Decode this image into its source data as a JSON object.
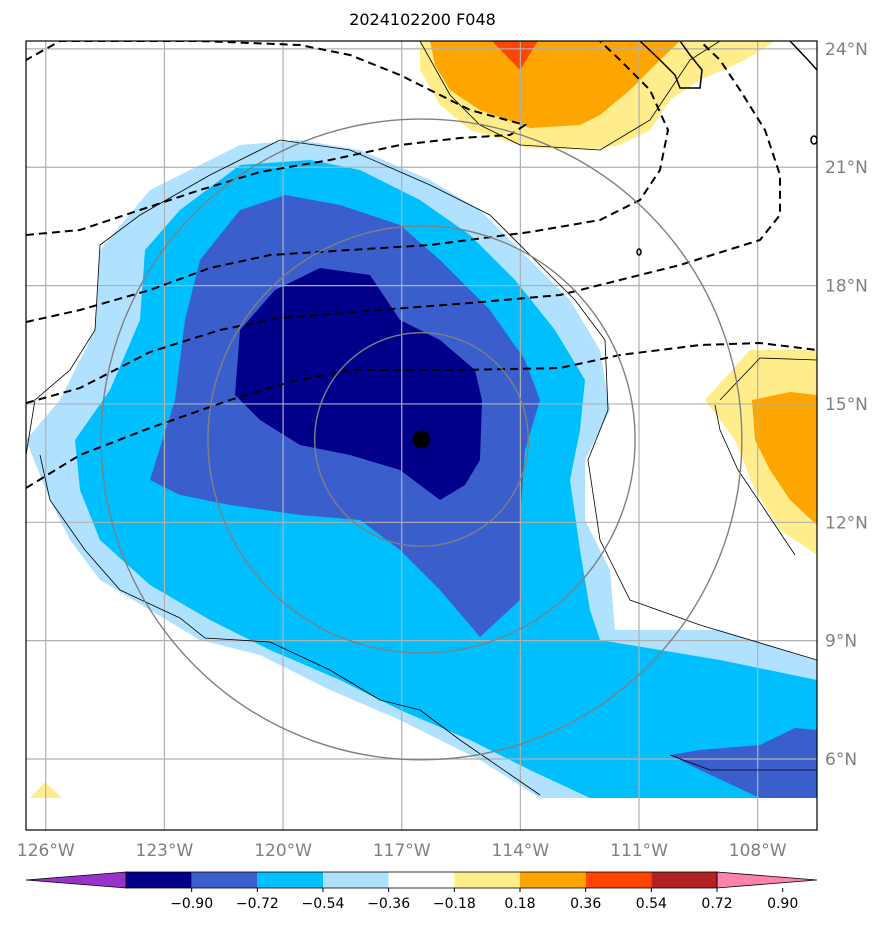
{
  "title": "2024102200 F048",
  "map": {
    "lon_range": [
      -126.5,
      -106.5
    ],
    "lat_range": [
      4.2,
      24.2
    ],
    "lat_ticks": [
      {
        "value": 24,
        "label": "24°N"
      },
      {
        "value": 21,
        "label": "21°N"
      },
      {
        "value": 18,
        "label": "18°N"
      },
      {
        "value": 15,
        "label": "15°N"
      },
      {
        "value": 12,
        "label": "12°N"
      },
      {
        "value": 9,
        "label": "9°N"
      },
      {
        "value": 6,
        "label": "6°N"
      }
    ],
    "lon_ticks": [
      {
        "value": -126,
        "label": "126°W"
      },
      {
        "value": -123,
        "label": "123°W"
      },
      {
        "value": -120,
        "label": "120°W"
      },
      {
        "value": -117,
        "label": "117°W"
      },
      {
        "value": -114,
        "label": "114°W"
      },
      {
        "value": -111,
        "label": "111°W"
      },
      {
        "value": -108,
        "label": "108°W"
      }
    ],
    "storm_center": {
      "lon": -116.5,
      "lat": 14.1
    },
    "range_rings_deg": [
      2.7,
      5.4,
      8.1
    ]
  },
  "colorbar": {
    "levels": [
      "−0.90",
      "−0.72",
      "−0.54",
      "−0.36",
      "−0.18",
      "0.18",
      "0.36",
      "0.54",
      "0.72",
      "0.90"
    ],
    "colors": [
      "#9932cc",
      "#00008b",
      "#3a5fcd",
      "#00bfff",
      "#b0e2ff",
      "#ffffff",
      "#ffec8b",
      "#ffa500",
      "#ff4500",
      "#b22222",
      "#ff82ab"
    ]
  },
  "colors": {
    "shade_darkblue": "#00008b",
    "shade_blue": "#3a5fcd",
    "shade_skyblue": "#00bfff",
    "shade_lightblue": "#b0e2ff",
    "shade_yellow": "#ffec8b",
    "shade_orange": "#ffa500",
    "shade_red": "#ff4500",
    "grid": "#b0b0b0",
    "ring": "#808080"
  }
}
